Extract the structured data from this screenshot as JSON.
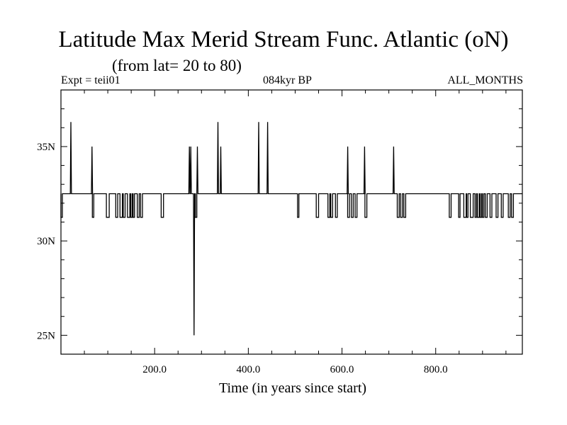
{
  "title": "Latitude Max Merid Stream Func. Atlantic (oN)",
  "subtitle": "(from lat= 20 to 80)",
  "header": {
    "left": "Expt = teii01",
    "center": "084kyr BP",
    "right": "ALL_MONTHS"
  },
  "chart_data": {
    "type": "line",
    "xlabel": "Time (in years since start)",
    "ylabel": "",
    "xlim": [
      0,
      985
    ],
    "ylim": [
      24,
      38
    ],
    "x_ticks": [
      200,
      400,
      600,
      800
    ],
    "x_tick_labels": [
      "200.0",
      "400.0",
      "600.0",
      "800.0"
    ],
    "y_ticks": [
      25,
      30,
      35
    ],
    "y_tick_labels": [
      "25N",
      "30N",
      "35N"
    ],
    "grid": false,
    "series": [
      {
        "baseline": 32.5,
        "spikes_up": [
          {
            "x": 20,
            "y": 36.3
          },
          {
            "x": 65,
            "y": 35.0
          },
          {
            "x": 273,
            "y": 35.0
          },
          {
            "x": 276,
            "y": 35.0
          },
          {
            "x": 290,
            "y": 35.0
          },
          {
            "x": 334,
            "y": 36.3
          },
          {
            "x": 340,
            "y": 35.0
          },
          {
            "x": 421,
            "y": 36.3
          },
          {
            "x": 440,
            "y": 36.3
          },
          {
            "x": 611,
            "y": 35.0
          },
          {
            "x": 647,
            "y": 35.0
          },
          {
            "x": 709,
            "y": 35.0
          }
        ],
        "spikes_down": [
          {
            "x": 283,
            "y": 25.0
          }
        ],
        "dips_low": 31.25,
        "dips": [
          [
            0,
            3
          ],
          [
            67,
            70
          ],
          [
            97,
            103
          ],
          [
            117,
            121
          ],
          [
            126,
            131
          ],
          [
            133,
            137
          ],
          [
            142,
            147
          ],
          [
            149,
            152
          ],
          [
            154,
            157
          ],
          [
            163,
            167
          ],
          [
            170,
            174
          ],
          [
            214,
            219
          ],
          [
            287,
            290
          ],
          [
            505,
            508
          ],
          [
            545,
            550
          ],
          [
            570,
            574
          ],
          [
            576,
            580
          ],
          [
            586,
            590
          ],
          [
            612,
            616
          ],
          [
            620,
            624
          ],
          [
            628,
            632
          ],
          [
            649,
            653
          ],
          [
            718,
            722
          ],
          [
            725,
            729
          ],
          [
            732,
            736
          ],
          [
            829,
            833
          ],
          [
            849,
            852
          ],
          [
            860,
            865
          ],
          [
            866,
            869
          ],
          [
            874,
            880
          ],
          [
            884,
            887
          ],
          [
            889,
            893
          ],
          [
            895,
            898
          ],
          [
            900,
            903
          ],
          [
            906,
            910
          ],
          [
            916,
            920
          ],
          [
            929,
            933
          ],
          [
            940,
            944
          ],
          [
            955,
            959
          ],
          [
            962,
            966
          ]
        ]
      }
    ]
  }
}
